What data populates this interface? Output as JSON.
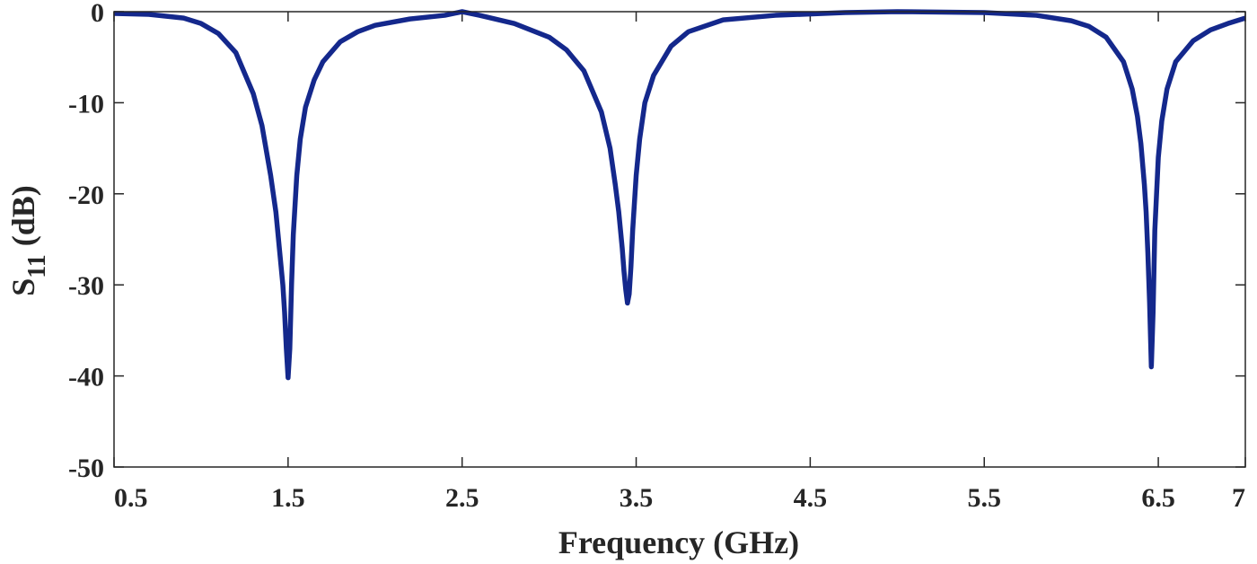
{
  "chart_data": {
    "type": "line",
    "xlabel": "Frequency (GHz)",
    "ylabel_main": "S",
    "ylabel_sub": "11",
    "ylabel_unit": " (dB)",
    "xlim": [
      0.5,
      7
    ],
    "ylim": [
      -50,
      0
    ],
    "xticks": [
      0.5,
      1.5,
      2.5,
      3.5,
      4.5,
      5.5,
      6.5,
      7
    ],
    "xtick_labels": [
      "0.5",
      "1.5",
      "2.5",
      "3.5",
      "4.5",
      "5.5",
      "6.5",
      "7"
    ],
    "yticks": [
      0,
      -10,
      -20,
      -30,
      -40,
      -50
    ],
    "ytick_labels": [
      "0",
      "-10",
      "-20",
      "-30",
      "-40",
      "-50"
    ],
    "grid": false,
    "series": [
      {
        "color": "#14288c",
        "x": [
          0.5,
          0.7,
          0.9,
          1.0,
          1.1,
          1.2,
          1.3,
          1.35,
          1.4,
          1.43,
          1.45,
          1.47,
          1.48,
          1.49,
          1.5,
          1.51,
          1.52,
          1.53,
          1.55,
          1.57,
          1.6,
          1.65,
          1.7,
          1.8,
          1.9,
          2.0,
          2.2,
          2.4,
          2.5,
          2.6,
          2.8,
          3.0,
          3.1,
          3.2,
          3.3,
          3.35,
          3.38,
          3.4,
          3.42,
          3.43,
          3.44,
          3.45,
          3.46,
          3.47,
          3.48,
          3.5,
          3.52,
          3.55,
          3.6,
          3.7,
          3.8,
          4.0,
          4.3,
          4.7,
          5.0,
          5.5,
          5.8,
          6.0,
          6.1,
          6.2,
          6.3,
          6.35,
          6.38,
          6.4,
          6.42,
          6.43,
          6.44,
          6.45,
          6.46,
          6.47,
          6.48,
          6.5,
          6.52,
          6.55,
          6.6,
          6.7,
          6.8,
          6.9,
          7.0
        ],
        "y": [
          -0.2,
          -0.3,
          -0.7,
          -1.3,
          -2.4,
          -4.5,
          -9.0,
          -12.5,
          -18.0,
          -22.0,
          -26.0,
          -30.0,
          -33.0,
          -37.0,
          -40.2,
          -37.0,
          -30.0,
          -24.5,
          -18.0,
          -14.0,
          -10.5,
          -7.5,
          -5.5,
          -3.3,
          -2.2,
          -1.5,
          -0.8,
          -0.4,
          0.0,
          -0.4,
          -1.3,
          -2.8,
          -4.2,
          -6.5,
          -11.0,
          -15.0,
          -19.0,
          -22.0,
          -26.0,
          -28.5,
          -30.5,
          -32.0,
          -31.0,
          -28.0,
          -24.0,
          -18.0,
          -14.0,
          -10.0,
          -7.0,
          -3.8,
          -2.2,
          -0.9,
          -0.4,
          -0.1,
          0.0,
          -0.1,
          -0.4,
          -1.0,
          -1.6,
          -2.8,
          -5.5,
          -8.5,
          -11.5,
          -14.5,
          -19.0,
          -22.0,
          -26.5,
          -32.0,
          -39.0,
          -33.0,
          -24.0,
          -16.0,
          -12.0,
          -8.5,
          -5.5,
          -3.2,
          -2.0,
          -1.3,
          -0.7
        ]
      }
    ]
  }
}
